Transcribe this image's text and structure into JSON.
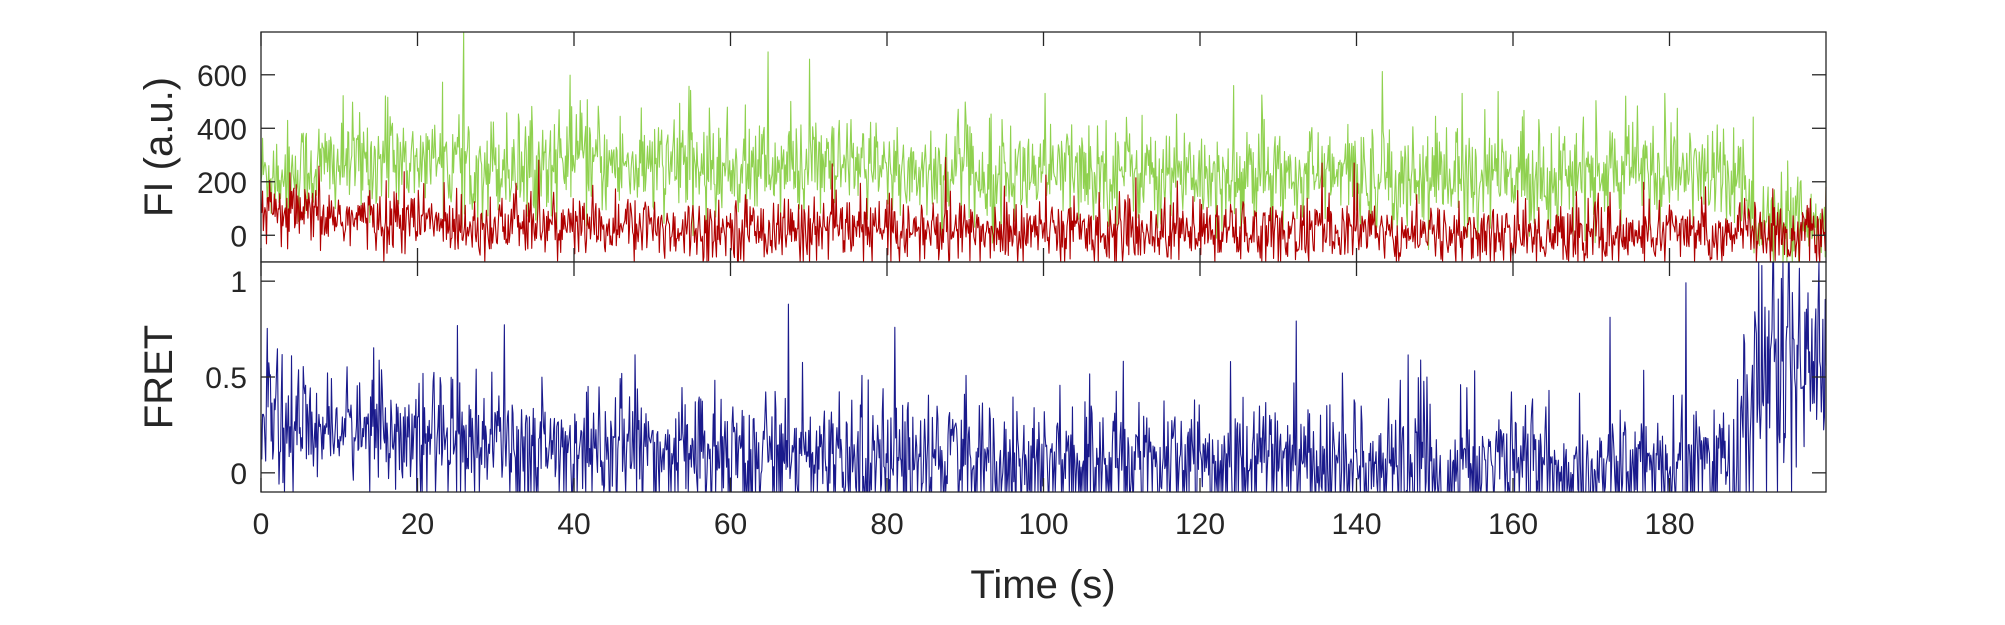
{
  "chart_data": [
    {
      "type": "line",
      "ylabel": "FI (a.u.)",
      "xlim": [
        0,
        200
      ],
      "ylim": [
        -100,
        760
      ],
      "yticks": [
        "0",
        "200",
        "400",
        "600"
      ],
      "series": [
        {
          "color": "#8fd14f",
          "values_by_time": [
            [
              0,
              230
            ],
            [
              5,
              240
            ],
            [
              10,
              270
            ],
            [
              15,
              280
            ],
            [
              20,
              275
            ],
            [
              25,
              270
            ],
            [
              30,
              265
            ],
            [
              35,
              260
            ],
            [
              40,
              285
            ],
            [
              45,
              265
            ],
            [
              50,
              255
            ],
            [
              55,
              250
            ],
            [
              60,
              250
            ],
            [
              65,
              250
            ],
            [
              70,
              245
            ],
            [
              75,
              240
            ],
            [
              80,
              240
            ],
            [
              85,
              240
            ],
            [
              90,
              235
            ],
            [
              95,
              235
            ],
            [
              100,
              230
            ],
            [
              105,
              240
            ],
            [
              110,
              250
            ],
            [
              115,
              240
            ],
            [
              120,
              230
            ],
            [
              125,
              225
            ],
            [
              130,
              225
            ],
            [
              135,
              225
            ],
            [
              140,
              225
            ],
            [
              145,
              225
            ],
            [
              150,
              225
            ],
            [
              155,
              220
            ],
            [
              160,
              220
            ],
            [
              165,
              220
            ],
            [
              170,
              225
            ],
            [
              175,
              240
            ],
            [
              180,
              240
            ],
            [
              185,
              230
            ],
            [
              189,
              220
            ],
            [
              190,
              120
            ],
            [
              192,
              40
            ],
            [
              195,
              20
            ],
            [
              200,
              10
            ]
          ]
        },
        {
          "color": "#b00000",
          "values_by_time": [
            [
              0,
              80
            ],
            [
              5,
              75
            ],
            [
              10,
              65
            ],
            [
              15,
              55
            ],
            [
              20,
              50
            ],
            [
              25,
              45
            ],
            [
              30,
              40
            ],
            [
              35,
              35
            ],
            [
              40,
              35
            ],
            [
              45,
              30
            ],
            [
              50,
              30
            ],
            [
              55,
              25
            ],
            [
              60,
              25
            ],
            [
              65,
              25
            ],
            [
              70,
              20
            ],
            [
              75,
              20
            ],
            [
              80,
              20
            ],
            [
              85,
              15
            ],
            [
              90,
              15
            ],
            [
              95,
              10
            ],
            [
              100,
              10
            ],
            [
              105,
              15
            ],
            [
              110,
              20
            ],
            [
              115,
              10
            ],
            [
              120,
              10
            ],
            [
              125,
              10
            ],
            [
              130,
              10
            ],
            [
              135,
              10
            ],
            [
              140,
              10
            ],
            [
              145,
              10
            ],
            [
              150,
              5
            ],
            [
              155,
              0
            ],
            [
              160,
              0
            ],
            [
              165,
              0
            ],
            [
              170,
              0
            ],
            [
              175,
              0
            ],
            [
              180,
              0
            ],
            [
              185,
              10
            ],
            [
              190,
              20
            ],
            [
              195,
              5
            ],
            [
              200,
              0
            ]
          ]
        }
      ]
    },
    {
      "type": "line",
      "ylabel": "FRET",
      "xlabel": "Time (s)",
      "xlim": [
        0,
        200
      ],
      "ylim": [
        -0.1,
        1.1
      ],
      "xticks": [
        "0",
        "20",
        "40",
        "60",
        "80",
        "100",
        "120",
        "140",
        "160",
        "180"
      ],
      "yticks": [
        "0",
        "0.5",
        "1"
      ],
      "series": [
        {
          "color": "#1a1a8c",
          "values_by_time": [
            [
              0,
              0.28
            ],
            [
              5,
              0.25
            ],
            [
              10,
              0.22
            ],
            [
              15,
              0.2
            ],
            [
              20,
              0.17
            ],
            [
              25,
              0.15
            ],
            [
              30,
              0.13
            ],
            [
              35,
              0.13
            ],
            [
              40,
              0.12
            ],
            [
              45,
              0.11
            ],
            [
              50,
              0.1
            ],
            [
              55,
              0.1
            ],
            [
              60,
              0.1
            ],
            [
              65,
              0.1
            ],
            [
              70,
              0.09
            ],
            [
              75,
              0.09
            ],
            [
              80,
              0.08
            ],
            [
              85,
              0.07
            ],
            [
              90,
              0.07
            ],
            [
              95,
              0.06
            ],
            [
              100,
              0.05
            ],
            [
              105,
              0.06
            ],
            [
              110,
              0.07
            ],
            [
              115,
              0.05
            ],
            [
              120,
              0.05
            ],
            [
              125,
              0.05
            ],
            [
              130,
              0.05
            ],
            [
              135,
              0.05
            ],
            [
              140,
              0.05
            ],
            [
              145,
              0.05
            ],
            [
              150,
              0.04
            ],
            [
              155,
              0.03
            ],
            [
              160,
              0.03
            ],
            [
              165,
              0.03
            ],
            [
              170,
              0.03
            ],
            [
              175,
              0.03
            ],
            [
              180,
              0.03
            ],
            [
              185,
              0.05
            ],
            [
              189,
              0.08
            ],
            [
              190,
              0.4
            ],
            [
              195,
              0.6
            ],
            [
              200,
              0.5
            ]
          ]
        }
      ]
    }
  ]
}
